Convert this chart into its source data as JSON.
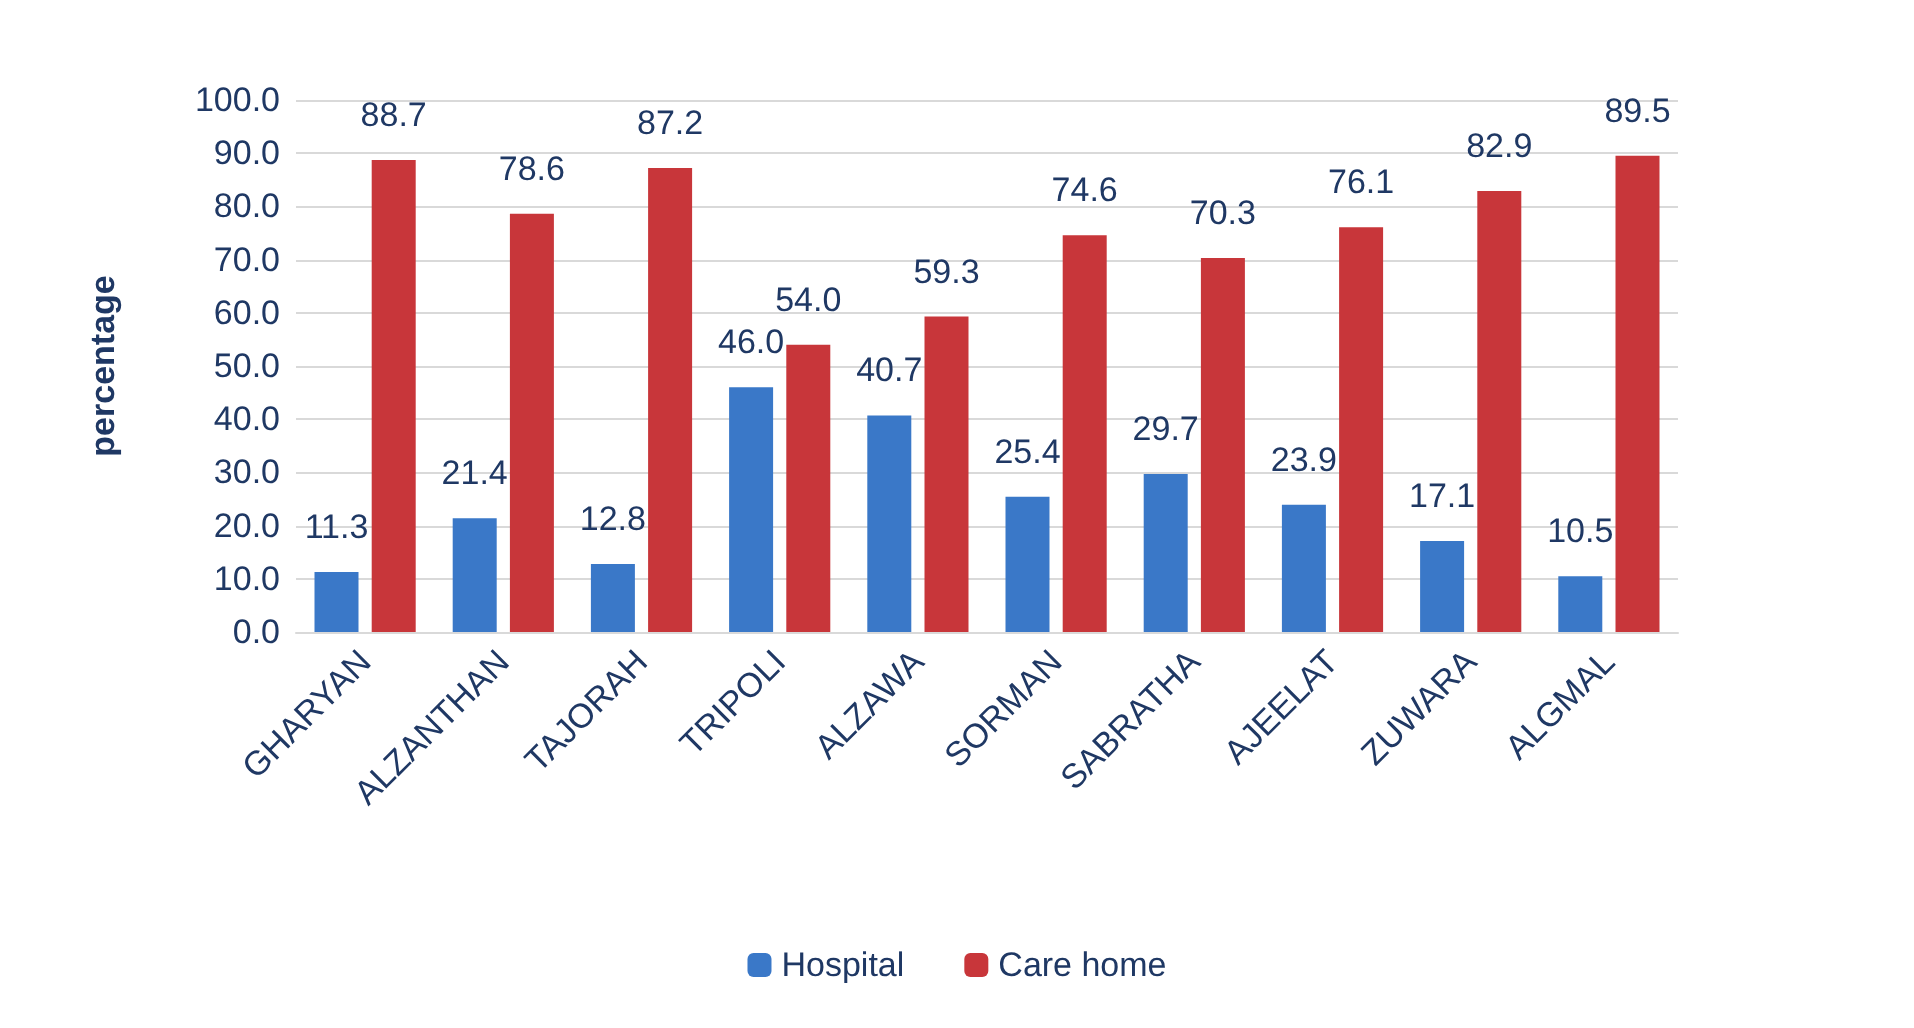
{
  "chart_data": {
    "type": "bar",
    "ylabel": "percentage",
    "categories": [
      "GHARYAN",
      "ALZANTHAN",
      "TAJORAH",
      "TRIPOLI",
      "ALZAWA",
      "SORMAN",
      "SABRATHA",
      "AJEELAT",
      "ZUWARA",
      "ALGMAL"
    ],
    "series": [
      {
        "name": "Hospital",
        "color": "#3a78c8",
        "values": [
          11.3,
          21.4,
          12.8,
          46.0,
          40.7,
          25.4,
          29.7,
          23.9,
          17.1,
          10.5
        ],
        "value_labels": [
          "11.3",
          "21.4",
          "12.8",
          "46.0",
          "40.7",
          "25.4",
          "29.7",
          "23.9",
          "17.1",
          "10.5"
        ]
      },
      {
        "name": "Care home",
        "color": "#c8363a",
        "values": [
          88.7,
          78.6,
          87.2,
          54.0,
          59.3,
          74.6,
          70.3,
          76.1,
          82.9,
          89.5
        ],
        "value_labels": [
          "88.7",
          "78.6",
          "87.2",
          "54.0",
          "59.3",
          "74.6",
          "70.3",
          "76.1",
          "82.9",
          "89.5"
        ]
      }
    ],
    "ylim": [
      0,
      100
    ],
    "yticks": [
      {
        "value": 0,
        "label": "0.0"
      },
      {
        "value": 10,
        "label": "10.0"
      },
      {
        "value": 20,
        "label": "20.0"
      },
      {
        "value": 30,
        "label": "30.0"
      },
      {
        "value": 40,
        "label": "40.0"
      },
      {
        "value": 50,
        "label": "50.0"
      },
      {
        "value": 60,
        "label": "60.0"
      },
      {
        "value": 70,
        "label": "70.0"
      },
      {
        "value": 80,
        "label": "80.0"
      },
      {
        "value": 90,
        "label": "90.0"
      },
      {
        "value": 100,
        "label": "100.0"
      }
    ],
    "grid": "y",
    "legend": "bottom"
  }
}
